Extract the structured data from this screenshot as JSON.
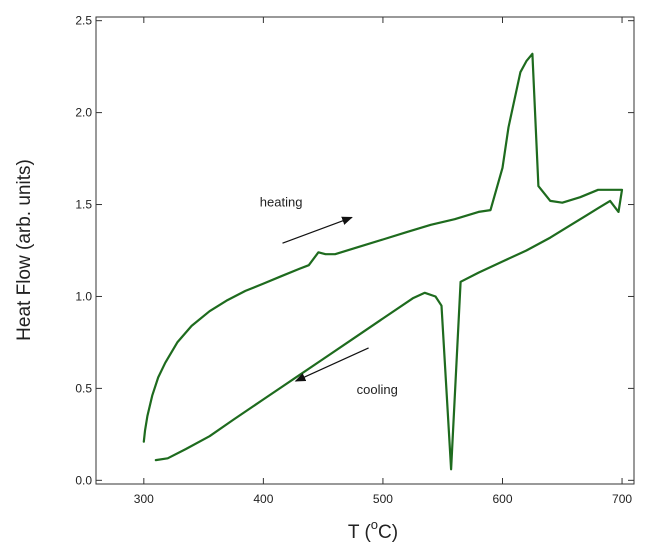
{
  "chart_data": {
    "type": "line",
    "title": "",
    "xlabel": {
      "prefix": "T (",
      "superscript": "o",
      "suffix": "C)"
    },
    "ylabel": "Heat Flow (arb. units)",
    "xlim": [
      260,
      710
    ],
    "ylim": [
      -0.02,
      2.52
    ],
    "xticks": [
      300,
      400,
      500,
      600,
      700
    ],
    "xtick_labels": [
      "300",
      "400",
      "500",
      "600",
      "700"
    ],
    "yticks": [
      0.0,
      0.5,
      1.0,
      1.5,
      2.0,
      2.5
    ],
    "ytick_labels": [
      "0.0",
      "0.5",
      "1.0",
      "1.5",
      "2.0",
      "2.5"
    ],
    "grid": false,
    "series": [
      {
        "color": "#1e6b1e",
        "x": [
          300,
          301,
          303,
          307,
          312,
          318,
          328,
          340,
          355,
          370,
          385,
          400,
          415,
          430,
          438,
          446,
          452,
          460,
          480,
          500,
          520,
          540,
          560,
          580,
          590,
          600,
          605,
          615,
          620,
          625,
          630,
          640,
          650,
          665,
          680,
          690,
          700,
          697,
          690,
          680,
          670,
          655,
          640,
          620,
          600,
          580,
          565,
          557,
          549,
          544,
          535,
          525,
          500,
          475,
          450,
          425,
          400,
          375,
          355,
          335,
          320,
          310
        ],
        "y": [
          0.21,
          0.27,
          0.35,
          0.46,
          0.56,
          0.64,
          0.75,
          0.84,
          0.92,
          0.98,
          1.03,
          1.07,
          1.11,
          1.15,
          1.17,
          1.24,
          1.23,
          1.23,
          1.27,
          1.31,
          1.35,
          1.39,
          1.42,
          1.46,
          1.47,
          1.7,
          1.92,
          2.22,
          2.28,
          2.32,
          1.6,
          1.52,
          1.51,
          1.54,
          1.58,
          1.58,
          1.58,
          1.46,
          1.52,
          1.48,
          1.44,
          1.38,
          1.32,
          1.25,
          1.19,
          1.13,
          1.08,
          0.06,
          0.95,
          1.0,
          1.02,
          0.99,
          0.88,
          0.77,
          0.66,
          0.55,
          0.44,
          0.33,
          0.24,
          0.17,
          0.12,
          0.11
        ]
      }
    ],
    "annotations": [
      {
        "text": "heating",
        "x": 397,
        "y": 1.49
      },
      {
        "text": "cooling",
        "x": 478,
        "y": 0.47
      }
    ],
    "arrows": [
      {
        "from_x": 416,
        "from_y": 1.29,
        "to_x": 474,
        "to_y": 1.43
      },
      {
        "from_x": 488,
        "from_y": 0.72,
        "to_x": 427,
        "to_y": 0.54
      }
    ]
  }
}
